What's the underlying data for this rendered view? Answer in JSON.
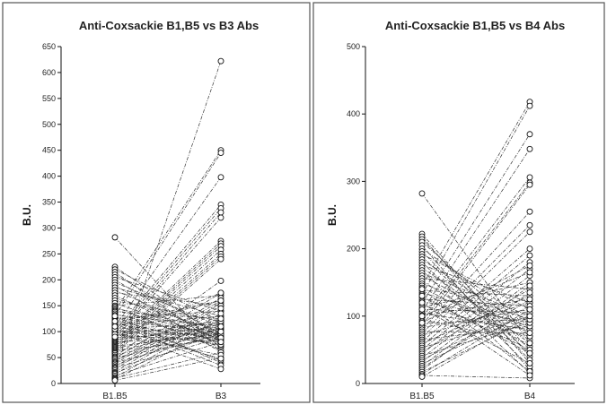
{
  "chart_data": [
    {
      "type": "scatter",
      "subtype": "paired-dot-line",
      "title": "Anti-Coxsackie B1,B5 vs B3 Abs",
      "ylabel": "B.U.",
      "xlabel": "",
      "categories": [
        "B1.B5",
        "B3"
      ],
      "ylim": [
        0,
        650
      ],
      "yticks": [
        0,
        50,
        100,
        150,
        200,
        250,
        300,
        350,
        400,
        450,
        500,
        550,
        600,
        650
      ],
      "pairs": [
        [
          282,
          60
        ],
        [
          225,
          88
        ],
        [
          220,
          120
        ],
        [
          215,
          70
        ],
        [
          210,
          95
        ],
        [
          205,
          140
        ],
        [
          200,
          80
        ],
        [
          195,
          110
        ],
        [
          190,
          60
        ],
        [
          185,
          130
        ],
        [
          180,
          90
        ],
        [
          175,
          150
        ],
        [
          170,
          75
        ],
        [
          165,
          100
        ],
        [
          160,
          120
        ],
        [
          155,
          85
        ],
        [
          150,
          170
        ],
        [
          148,
          65
        ],
        [
          145,
          105
        ],
        [
          142,
          90
        ],
        [
          140,
          450
        ],
        [
          138,
          125
        ],
        [
          135,
          80
        ],
        [
          132,
          110
        ],
        [
          130,
          445
        ],
        [
          128,
          95
        ],
        [
          125,
          140
        ],
        [
          122,
          72
        ],
        [
          120,
          100
        ],
        [
          118,
          160
        ],
        [
          115,
          85
        ],
        [
          112,
          130
        ],
        [
          110,
          398
        ],
        [
          108,
          90
        ],
        [
          106,
          115
        ],
        [
          104,
          75
        ],
        [
          102,
          345
        ],
        [
          100,
          105
        ],
        [
          98,
          95
        ],
        [
          96,
          338
        ],
        [
          94,
          80
        ],
        [
          92,
          120
        ],
        [
          90,
          330
        ],
        [
          88,
          100
        ],
        [
          86,
          320
        ],
        [
          84,
          110
        ],
        [
          82,
          275
        ],
        [
          80,
          90
        ],
        [
          78,
          270
        ],
        [
          76,
          125
        ],
        [
          74,
          265
        ],
        [
          72,
          95
        ],
        [
          70,
          258
        ],
        [
          68,
          105
        ],
        [
          66,
          250
        ],
        [
          64,
          85
        ],
        [
          62,
          245
        ],
        [
          60,
          115
        ],
        [
          58,
          240
        ],
        [
          55,
          100
        ],
        [
          52,
          198
        ],
        [
          50,
          90
        ],
        [
          48,
          175
        ],
        [
          45,
          120
        ],
        [
          42,
          165
        ],
        [
          40,
          95
        ],
        [
          38,
          160
        ],
        [
          35,
          108
        ],
        [
          32,
          155
        ],
        [
          30,
          88
        ],
        [
          28,
          150
        ],
        [
          25,
          622
        ],
        [
          22,
          145
        ],
        [
          20,
          100
        ],
        [
          18,
          135
        ],
        [
          15,
          80
        ],
        [
          12,
          125
        ],
        [
          10,
          60
        ],
        [
          8,
          110
        ],
        [
          6,
          50
        ],
        [
          130,
          40
        ],
        [
          115,
          35
        ],
        [
          100,
          28
        ],
        [
          120,
          45
        ],
        [
          95,
          55
        ],
        [
          105,
          48
        ],
        [
          110,
          160
        ],
        [
          90,
          175
        ]
      ]
    },
    {
      "type": "scatter",
      "subtype": "paired-dot-line",
      "title": "Anti-Coxsackie B1,B5 vs B4 Abs",
      "ylabel": "B.U.",
      "xlabel": "",
      "categories": [
        "B1.B5",
        "B4"
      ],
      "ylim": [
        0,
        500
      ],
      "yticks": [
        0,
        100,
        200,
        300,
        400,
        500
      ],
      "pairs": [
        [
          282,
          60
        ],
        [
          222,
          40
        ],
        [
          218,
          30
        ],
        [
          214,
          50
        ],
        [
          210,
          70
        ],
        [
          205,
          20
        ],
        [
          200,
          90
        ],
        [
          196,
          35
        ],
        [
          192,
          110
        ],
        [
          188,
          45
        ],
        [
          184,
          80
        ],
        [
          180,
          25
        ],
        [
          176,
          120
        ],
        [
          172,
          60
        ],
        [
          168,
          15
        ],
        [
          164,
          100
        ],
        [
          160,
          75
        ],
        [
          156,
          140
        ],
        [
          152,
          55
        ],
        [
          148,
          95
        ],
        [
          145,
          418
        ],
        [
          142,
          65
        ],
        [
          138,
          130
        ],
        [
          135,
          85
        ],
        [
          132,
          412
        ],
        [
          128,
          50
        ],
        [
          125,
          115
        ],
        [
          122,
          90
        ],
        [
          119,
          370
        ],
        [
          116,
          70
        ],
        [
          113,
          150
        ],
        [
          110,
          105
        ],
        [
          107,
          348
        ],
        [
          104,
          80
        ],
        [
          101,
          125
        ],
        [
          98,
          306
        ],
        [
          95,
          60
        ],
        [
          92,
          298
        ],
        [
          89,
          95
        ],
        [
          86,
          295
        ],
        [
          83,
          110
        ],
        [
          80,
          255
        ],
        [
          77,
          75
        ],
        [
          74,
          235
        ],
        [
          71,
          120
        ],
        [
          68,
          225
        ],
        [
          65,
          85
        ],
        [
          62,
          200
        ],
        [
          59,
          130
        ],
        [
          56,
          190
        ],
        [
          53,
          100
        ],
        [
          50,
          180
        ],
        [
          47,
          140
        ],
        [
          44,
          170
        ],
        [
          41,
          90
        ],
        [
          38,
          160
        ],
        [
          35,
          115
        ],
        [
          32,
          150
        ],
        [
          29,
          105
        ],
        [
          26,
          145
        ],
        [
          23,
          125
        ],
        [
          20,
          135
        ],
        [
          17,
          95
        ],
        [
          14,
          110
        ],
        [
          12,
          8
        ],
        [
          10,
          100
        ],
        [
          140,
          18
        ],
        [
          120,
          12
        ],
        [
          100,
          165
        ],
        [
          90,
          175
        ],
        [
          110,
          30
        ],
        [
          130,
          45
        ]
      ]
    }
  ]
}
